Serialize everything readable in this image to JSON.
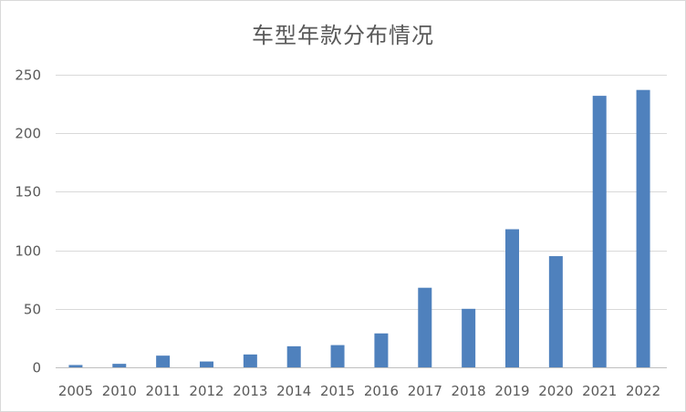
{
  "chart_data": {
    "type": "bar",
    "title": "车型年款分布情况",
    "categories": [
      "2005",
      "2010",
      "2011",
      "2012",
      "2013",
      "2014",
      "2015",
      "2016",
      "2017",
      "2018",
      "2019",
      "2020",
      "2021",
      "2022"
    ],
    "series": [
      {
        "values": [
          2,
          3,
          10,
          5,
          11,
          18,
          19,
          29,
          68,
          50,
          118,
          95,
          232,
          237
        ],
        "color": "#4f81bd"
      }
    ],
    "ylim": [
      0,
      250
    ],
    "yticks": [
      0,
      50,
      100,
      150,
      200,
      250
    ],
    "grid": true,
    "legend": "none"
  }
}
